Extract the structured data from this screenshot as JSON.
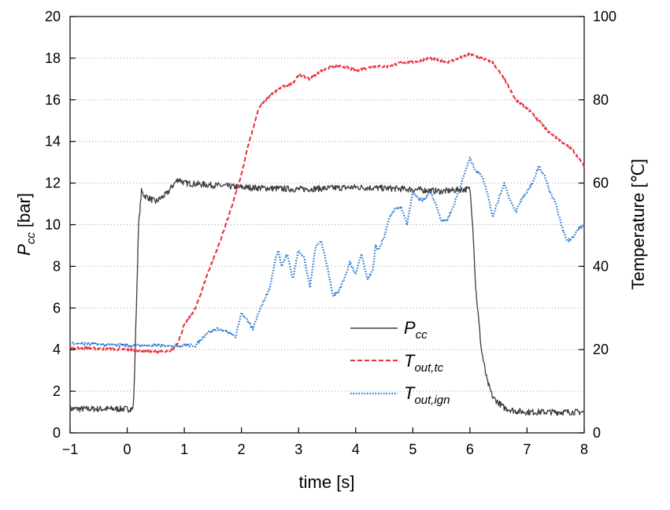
{
  "chart_data": {
    "type": "line",
    "xlabel": "time [s]",
    "ylabel_left": {
      "main": "P",
      "sub": "cc",
      "unit": " [bar]"
    },
    "ylabel_right": "Temperature [℃]",
    "xlim": [
      -1,
      8
    ],
    "ylim_left": [
      0,
      20
    ],
    "ylim_right": [
      0,
      100
    ],
    "x_ticks": [
      -1,
      0,
      1,
      2,
      3,
      4,
      5,
      6,
      7,
      8
    ],
    "x_tick_labels": [
      "−1",
      "0",
      "1",
      "2",
      "3",
      "4",
      "5",
      "6",
      "7",
      "8"
    ],
    "y_left_ticks": [
      0,
      2,
      4,
      6,
      8,
      10,
      12,
      14,
      16,
      18,
      20
    ],
    "y_right_ticks": [
      0,
      20,
      40,
      60,
      80,
      100
    ],
    "grid": "horizontal dotted",
    "legend_position": "center-bottom",
    "series": [
      {
        "name": "P_cc",
        "legend_main": "P",
        "legend_sub": "cc",
        "axis": "left",
        "color": "#3c3c3c",
        "style": "solid",
        "noise": 0.15,
        "x": [
          -1,
          0.1,
          0.12,
          0.16,
          0.2,
          0.25,
          0.3,
          0.5,
          0.7,
          0.8,
          0.9,
          1.0,
          1.5,
          2.0,
          3.0,
          4.0,
          5.0,
          5.5,
          5.9,
          6.0,
          6.05,
          6.1,
          6.2,
          6.3,
          6.4,
          6.6,
          6.8,
          7.0,
          8.0
        ],
        "y": [
          1.15,
          1.15,
          2.0,
          6.0,
          10.0,
          11.6,
          11.4,
          11.1,
          11.5,
          11.9,
          12.2,
          12.0,
          11.9,
          11.8,
          11.7,
          11.8,
          11.7,
          11.6,
          11.7,
          11.7,
          10.0,
          7.0,
          4.0,
          2.5,
          1.7,
          1.2,
          1.05,
          1.0,
          1.0
        ]
      },
      {
        "name": "T_out,tc",
        "legend_main": "T",
        "legend_sub": "out,tc",
        "axis": "right",
        "color": "#e8323c",
        "style": "dashed",
        "noise": 0.3,
        "x": [
          -1,
          0,
          0.5,
          0.7,
          0.8,
          0.9,
          1.0,
          1.2,
          1.4,
          1.6,
          1.8,
          2.0,
          2.1,
          2.2,
          2.3,
          2.5,
          2.7,
          2.9,
          3.0,
          3.2,
          3.4,
          3.6,
          3.8,
          4.0,
          4.3,
          4.6,
          4.8,
          5.0,
          5.3,
          5.6,
          5.8,
          6.0,
          6.2,
          6.4,
          6.6,
          6.8,
          7.0,
          7.2,
          7.4,
          7.6,
          7.8,
          8.0
        ],
        "y": [
          20.5,
          20,
          19.5,
          19.5,
          20,
          22,
          26,
          30,
          38,
          45,
          53,
          62,
          68,
          73,
          78,
          81,
          83,
          84,
          86,
          85,
          87,
          88,
          88,
          87,
          88,
          88,
          89,
          89,
          90,
          89,
          90,
          91,
          90,
          89,
          85,
          80,
          78,
          75,
          72,
          70,
          68,
          64
        ]
      },
      {
        "name": "T_out,ign",
        "legend_main": "T",
        "legend_sub": "out,ign",
        "axis": "right",
        "color": "#1f6fd1",
        "style": "dotted",
        "noise": 0.3,
        "x": [
          -1,
          0,
          0.5,
          1.0,
          1.2,
          1.4,
          1.6,
          1.8,
          1.9,
          2.0,
          2.1,
          2.2,
          2.3,
          2.4,
          2.5,
          2.6,
          2.65,
          2.7,
          2.8,
          2.9,
          3.0,
          3.1,
          3.2,
          3.3,
          3.4,
          3.5,
          3.6,
          3.7,
          3.8,
          3.9,
          4.0,
          4.1,
          4.2,
          4.3,
          4.35,
          4.4,
          4.5,
          4.6,
          4.7,
          4.8,
          4.9,
          5.0,
          5.1,
          5.2,
          5.3,
          5.4,
          5.5,
          5.6,
          5.7,
          5.8,
          5.9,
          6.0,
          6.1,
          6.2,
          6.3,
          6.4,
          6.5,
          6.6,
          6.7,
          6.8,
          6.9,
          7.0,
          7.1,
          7.2,
          7.3,
          7.4,
          7.5,
          7.6,
          7.7,
          7.8,
          7.9,
          8.0
        ],
        "y": [
          21.5,
          21,
          21,
          21,
          21,
          24,
          25,
          24,
          23,
          29,
          27,
          25,
          29,
          32,
          35,
          42,
          44,
          40,
          43,
          37,
          44,
          42,
          35,
          45,
          46,
          40,
          33,
          34,
          37,
          41,
          38,
          43,
          37,
          39,
          45,
          44,
          47,
          52,
          54,
          54,
          50,
          58,
          56,
          56,
          58,
          55,
          51,
          51,
          54,
          58,
          62,
          66,
          63,
          62,
          58,
          52,
          56,
          60,
          56,
          53,
          56,
          58,
          60,
          64,
          62,
          58,
          55,
          50,
          46,
          47,
          49,
          50
        ]
      }
    ]
  }
}
